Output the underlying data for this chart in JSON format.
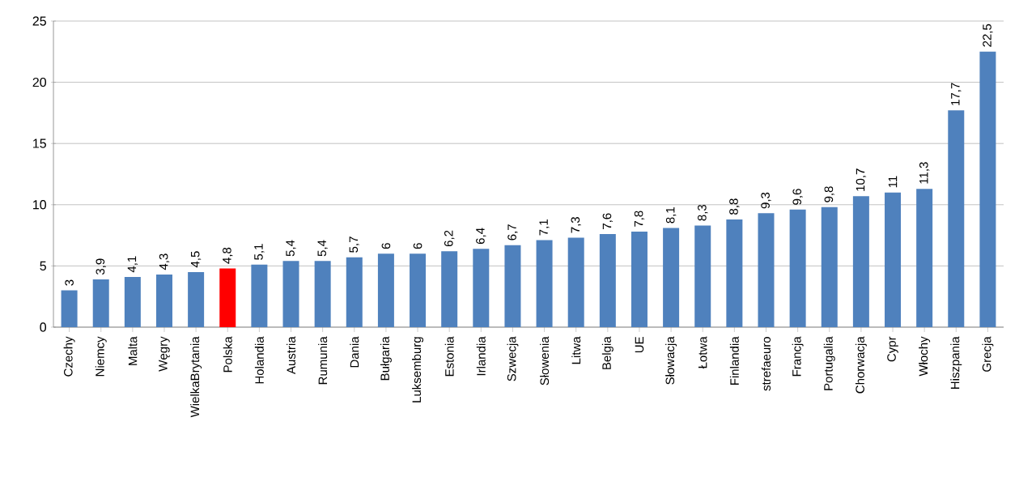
{
  "chart_data": {
    "type": "bar",
    "categories": [
      "Czechy",
      "Niemcy",
      "Malta",
      "Węgry",
      "WielkaBrytania",
      "Polska",
      "Holandia",
      "Austria",
      "Rumunia",
      "Dania",
      "Bułgaria",
      "Luksemburg",
      "Estonia",
      "Irlandia",
      "Szwecja",
      "Słowenia",
      "Litwa",
      "Belgia",
      "UE",
      "Słowacja",
      "Łotwa",
      "Finlandia",
      "strefaeuro",
      "Francja",
      "Portugalia",
      "Chorwacja",
      "Cypr",
      "Włochy",
      "Hiszpania",
      "Grecja"
    ],
    "values": [
      3,
      3.9,
      4.1,
      4.3,
      4.5,
      4.8,
      5.1,
      5.4,
      5.4,
      5.7,
      6,
      6,
      6.2,
      6.4,
      6.7,
      7.1,
      7.3,
      7.6,
      7.8,
      8.1,
      8.3,
      8.8,
      9.3,
      9.6,
      9.8,
      10.7,
      11,
      11.3,
      17.7,
      22.5
    ],
    "value_labels": [
      "3",
      "3,9",
      "4,1",
      "4,3",
      "4,5",
      "4,8",
      "5,1",
      "5,4",
      "5,4",
      "5,7",
      "6",
      "6",
      "6,2",
      "6,4",
      "6,7",
      "7,1",
      "7,3",
      "7,6",
      "7,8",
      "8,1",
      "8,3",
      "8,8",
      "9,3",
      "9,6",
      "9,8",
      "10,7",
      "11",
      "11,3",
      "17,7",
      "22,5"
    ],
    "colors": [
      "#4f81bd",
      "#4f81bd",
      "#4f81bd",
      "#4f81bd",
      "#4f81bd",
      "#ff0000",
      "#4f81bd",
      "#4f81bd",
      "#4f81bd",
      "#4f81bd",
      "#4f81bd",
      "#4f81bd",
      "#4f81bd",
      "#4f81bd",
      "#4f81bd",
      "#4f81bd",
      "#4f81bd",
      "#4f81bd",
      "#4f81bd",
      "#4f81bd",
      "#4f81bd",
      "#4f81bd",
      "#4f81bd",
      "#4f81bd",
      "#4f81bd",
      "#4f81bd",
      "#4f81bd",
      "#4f81bd",
      "#4f81bd",
      "#4f81bd"
    ],
    "ylim": [
      0,
      25
    ],
    "yticks": [
      0,
      5,
      10,
      15,
      20,
      25
    ],
    "grid": true
  }
}
